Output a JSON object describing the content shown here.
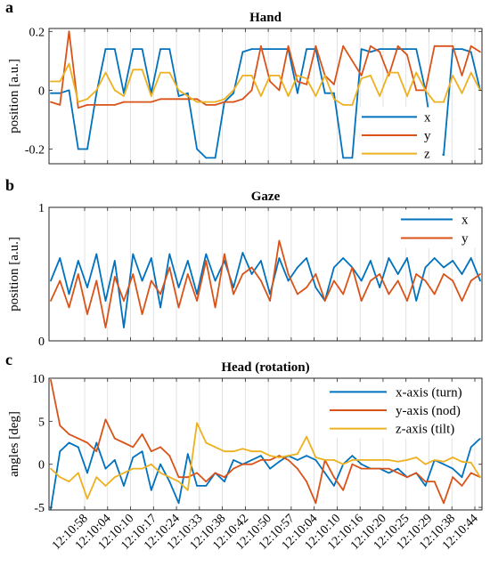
{
  "chart_data": [
    {
      "panel": "a",
      "type": "line",
      "title": "Hand",
      "ylabel": "position [a.u.]",
      "xlabel": "",
      "ylim": [
        -0.25,
        0.21
      ],
      "yticks": [
        0.2,
        0,
        -0.2
      ],
      "ytick_labels": [
        "0.2",
        "0",
        "-0.2"
      ],
      "grid": "x",
      "legend": "bottom-right",
      "series": [
        {
          "name": "x",
          "color": "#0072BD",
          "values": [
            -0.01,
            -0.01,
            0.0,
            -0.2,
            -0.2,
            -0.01,
            0.14,
            0.14,
            -0.01,
            0.14,
            0.14,
            -0.01,
            0.14,
            0.14,
            -0.02,
            -0.01,
            -0.2,
            -0.23,
            -0.23,
            -0.04,
            -0.01,
            0.13,
            0.14,
            0.14,
            0.14,
            0.14,
            0.14,
            -0.01,
            0.14,
            0.14,
            -0.01,
            -0.01,
            -0.23,
            -0.23,
            0.14,
            0.13,
            0.14,
            0.14,
            0.14,
            0.14,
            0.14,
            0.0,
            -0.21,
            -0.22,
            0.14,
            0.14,
            0.13,
            0.0
          ]
        },
        {
          "name": "y",
          "color": "#D95319",
          "values": [
            -0.04,
            -0.05,
            0.2,
            -0.06,
            -0.05,
            -0.05,
            -0.05,
            -0.05,
            -0.04,
            -0.04,
            -0.04,
            -0.04,
            -0.03,
            -0.03,
            -0.03,
            -0.03,
            -0.03,
            -0.05,
            -0.05,
            -0.04,
            -0.04,
            -0.03,
            0.0,
            0.15,
            0.03,
            0.0,
            0.15,
            0.03,
            0.02,
            0.15,
            0.05,
            0.02,
            0.15,
            0.1,
            0.05,
            0.15,
            0.13,
            0.05,
            0.15,
            0.12,
            0.0,
            0.0,
            0.15,
            0.15,
            0.15,
            0.05,
            0.15,
            0.13
          ]
        },
        {
          "name": "z",
          "color": "#EDB120",
          "values": [
            0.03,
            0.03,
            0.09,
            -0.04,
            -0.03,
            0.0,
            0.06,
            0.0,
            -0.02,
            0.07,
            0.07,
            -0.02,
            0.06,
            0.06,
            0.0,
            -0.02,
            -0.04,
            -0.04,
            -0.04,
            -0.03,
            0.0,
            0.05,
            0.05,
            -0.02,
            0.05,
            0.05,
            -0.02,
            0.05,
            0.04,
            -0.02,
            0.05,
            -0.03,
            -0.05,
            -0.05,
            0.04,
            0.05,
            -0.02,
            0.06,
            0.06,
            -0.02,
            0.06,
            0.0,
            -0.04,
            -0.04,
            0.05,
            -0.01,
            0.06,
            0.0
          ]
        }
      ]
    },
    {
      "panel": "b",
      "type": "line",
      "title": "Gaze",
      "ylabel": "position [a.u.]",
      "xlabel": "",
      "ylim": [
        0,
        1
      ],
      "yticks": [
        1,
        0
      ],
      "ytick_labels": [
        "1",
        "0"
      ],
      "grid": "x",
      "legend": "top-right",
      "series": [
        {
          "name": "x",
          "color": "#0072BD",
          "values": [
            0.45,
            0.62,
            0.35,
            0.6,
            0.4,
            0.65,
            0.3,
            0.6,
            0.1,
            0.65,
            0.45,
            0.62,
            0.25,
            0.65,
            0.4,
            0.6,
            0.35,
            0.65,
            0.45,
            0.6,
            0.4,
            0.66,
            0.5,
            0.6,
            0.35,
            0.62,
            0.45,
            0.55,
            0.62,
            0.4,
            0.3,
            0.55,
            0.62,
            0.55,
            0.45,
            0.6,
            0.4,
            0.62,
            0.5,
            0.62,
            0.3,
            0.55,
            0.62,
            0.55,
            0.6,
            0.5,
            0.62,
            0.45
          ]
        },
        {
          "name": "y",
          "color": "#D95319",
          "values": [
            0.3,
            0.45,
            0.25,
            0.5,
            0.2,
            0.45,
            0.1,
            0.48,
            0.3,
            0.5,
            0.2,
            0.45,
            0.35,
            0.55,
            0.25,
            0.5,
            0.3,
            0.6,
            0.25,
            0.65,
            0.35,
            0.5,
            0.55,
            0.45,
            0.3,
            0.75,
            0.5,
            0.35,
            0.4,
            0.5,
            0.3,
            0.45,
            0.35,
            0.55,
            0.3,
            0.45,
            0.5,
            0.35,
            0.45,
            0.3,
            0.5,
            0.45,
            0.35,
            0.5,
            0.45,
            0.3,
            0.45,
            0.5
          ]
        }
      ]
    },
    {
      "panel": "c",
      "type": "line",
      "title": "Head (rotation)",
      "ylabel": "angles [deg]",
      "xlabel": "",
      "ylim": [
        -5.3,
        10
      ],
      "yticks": [
        10,
        5,
        0,
        -5
      ],
      "ytick_labels": [
        "10",
        "5",
        "0",
        "-5"
      ],
      "grid": "x",
      "legend": "top-right",
      "series": [
        {
          "name": "x-axis (turn)",
          "color": "#0072BD",
          "values": [
            -5.2,
            1.5,
            2.5,
            2.0,
            -1.0,
            2.5,
            -0.5,
            0.5,
            -2.5,
            0.8,
            1.5,
            -3.0,
            0.0,
            -2.0,
            -4.5,
            1.2,
            -2.5,
            -2.5,
            -1.0,
            -2.0,
            0.5,
            0.0,
            0.5,
            1.0,
            -0.5,
            0.3,
            1.0,
            0.5,
            1.0,
            0.5,
            -1.0,
            -2.5,
            0.0,
            1.0,
            0.0,
            -0.5,
            -0.5,
            -1.0,
            -0.5,
            -1.5,
            -1.0,
            -2.5,
            0.5,
            0.0,
            -0.5,
            -1.5,
            2.0,
            3.0
          ]
        },
        {
          "name": "y-axis (nod)",
          "color": "#D95319",
          "values": [
            9.8,
            4.5,
            3.5,
            3.0,
            2.5,
            1.5,
            5.2,
            3.0,
            2.5,
            2.0,
            3.5,
            1.5,
            2.0,
            1.0,
            -1.5,
            -1.5,
            -1.0,
            -2.0,
            -1.0,
            -1.5,
            -0.5,
            0.0,
            0.0,
            0.5,
            0.5,
            1.0,
            0.5,
            -0.5,
            -2.0,
            -4.5,
            0.5,
            -1.5,
            -3.0,
            0.0,
            -0.5,
            -0.5,
            -0.5,
            -0.5,
            -1.0,
            -1.5,
            -1.0,
            -2.0,
            -2.0,
            -4.5,
            -1.5,
            -2.5,
            -1.0,
            -1.5
          ]
        },
        {
          "name": "z-axis (tilt)",
          "color": "#EDB120",
          "values": [
            -0.5,
            -1.5,
            -2.0,
            -1.0,
            -4.0,
            -1.5,
            -2.5,
            -1.5,
            -1.0,
            -0.5,
            -0.5,
            0.0,
            -1.0,
            -1.5,
            -2.0,
            -3.0,
            4.8,
            2.5,
            2.0,
            1.5,
            1.5,
            1.8,
            1.5,
            1.5,
            1.0,
            0.8,
            1.0,
            1.2,
            3.2,
            0.8,
            0.5,
            0.5,
            0.0,
            0.5,
            0.5,
            0.5,
            0.5,
            0.5,
            0.3,
            0.5,
            0.8,
            0.0,
            0.5,
            0.3,
            0.8,
            0.3,
            0.2,
            -1.5
          ]
        }
      ],
      "x_tick_labels": [
        "12:10:58",
        "12:10:04",
        "12:10:10",
        "12:10:17",
        "12:10:24",
        "12:10:33",
        "12:10:38",
        "12:10:42",
        "12:10:50",
        "12:10:57",
        "12:10:04",
        "12:10:10",
        "12:10:16",
        "12:10:20",
        "12:10:25",
        "12:10:29",
        "12:10:38",
        "12:10:44"
      ]
    }
  ]
}
